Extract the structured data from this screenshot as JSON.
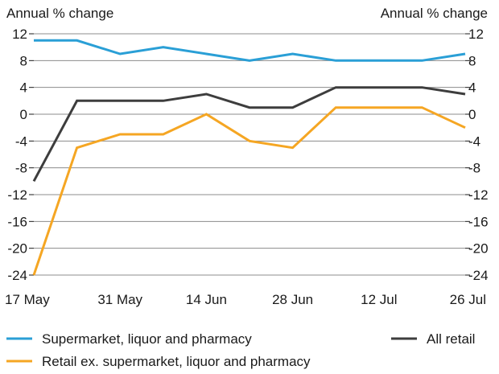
{
  "chart_data": {
    "type": "line",
    "title": "",
    "y_unit_left": "Annual % change",
    "y_unit_right": "Annual % change",
    "ylim": [
      -24,
      12
    ],
    "y_ticks": [
      12,
      8,
      4,
      0,
      -4,
      -8,
      -12,
      -16,
      -20,
      -24
    ],
    "y_tick_labels": [
      "12",
      "8",
      "4",
      "0",
      "-4",
      "-8",
      "-12",
      "-16",
      "-20",
      "-24"
    ],
    "grid": true,
    "x": [
      "17 May",
      "24 May",
      "31 May",
      "07 Jun",
      "14 Jun",
      "21 Jun",
      "28 Jun",
      "05 Jul",
      "12 Jul",
      "19 Jul",
      "26 Jul"
    ],
    "x_tick_labels": [
      "17 May",
      "31 May",
      "14 Jun",
      "28 Jun",
      "12 Jul",
      "26 Jul"
    ],
    "series": [
      {
        "name": "Supermarket, liquor and pharmacy",
        "color": "#2a9fd6",
        "values": [
          11,
          11,
          9,
          10,
          9,
          8,
          9,
          8,
          8,
          8,
          9
        ]
      },
      {
        "name": "All retail",
        "color": "#3d3d3d",
        "values": [
          -10,
          2,
          2,
          2,
          3,
          1,
          1,
          4,
          4,
          4,
          3
        ]
      },
      {
        "name": "Retail ex. supermarket, liquor and pharmacy",
        "color": "#f5a623",
        "values": [
          -24,
          -5,
          -3,
          -3,
          0,
          -4,
          -5,
          1,
          1,
          1,
          -2
        ]
      }
    ],
    "legend_position": "bottom"
  }
}
